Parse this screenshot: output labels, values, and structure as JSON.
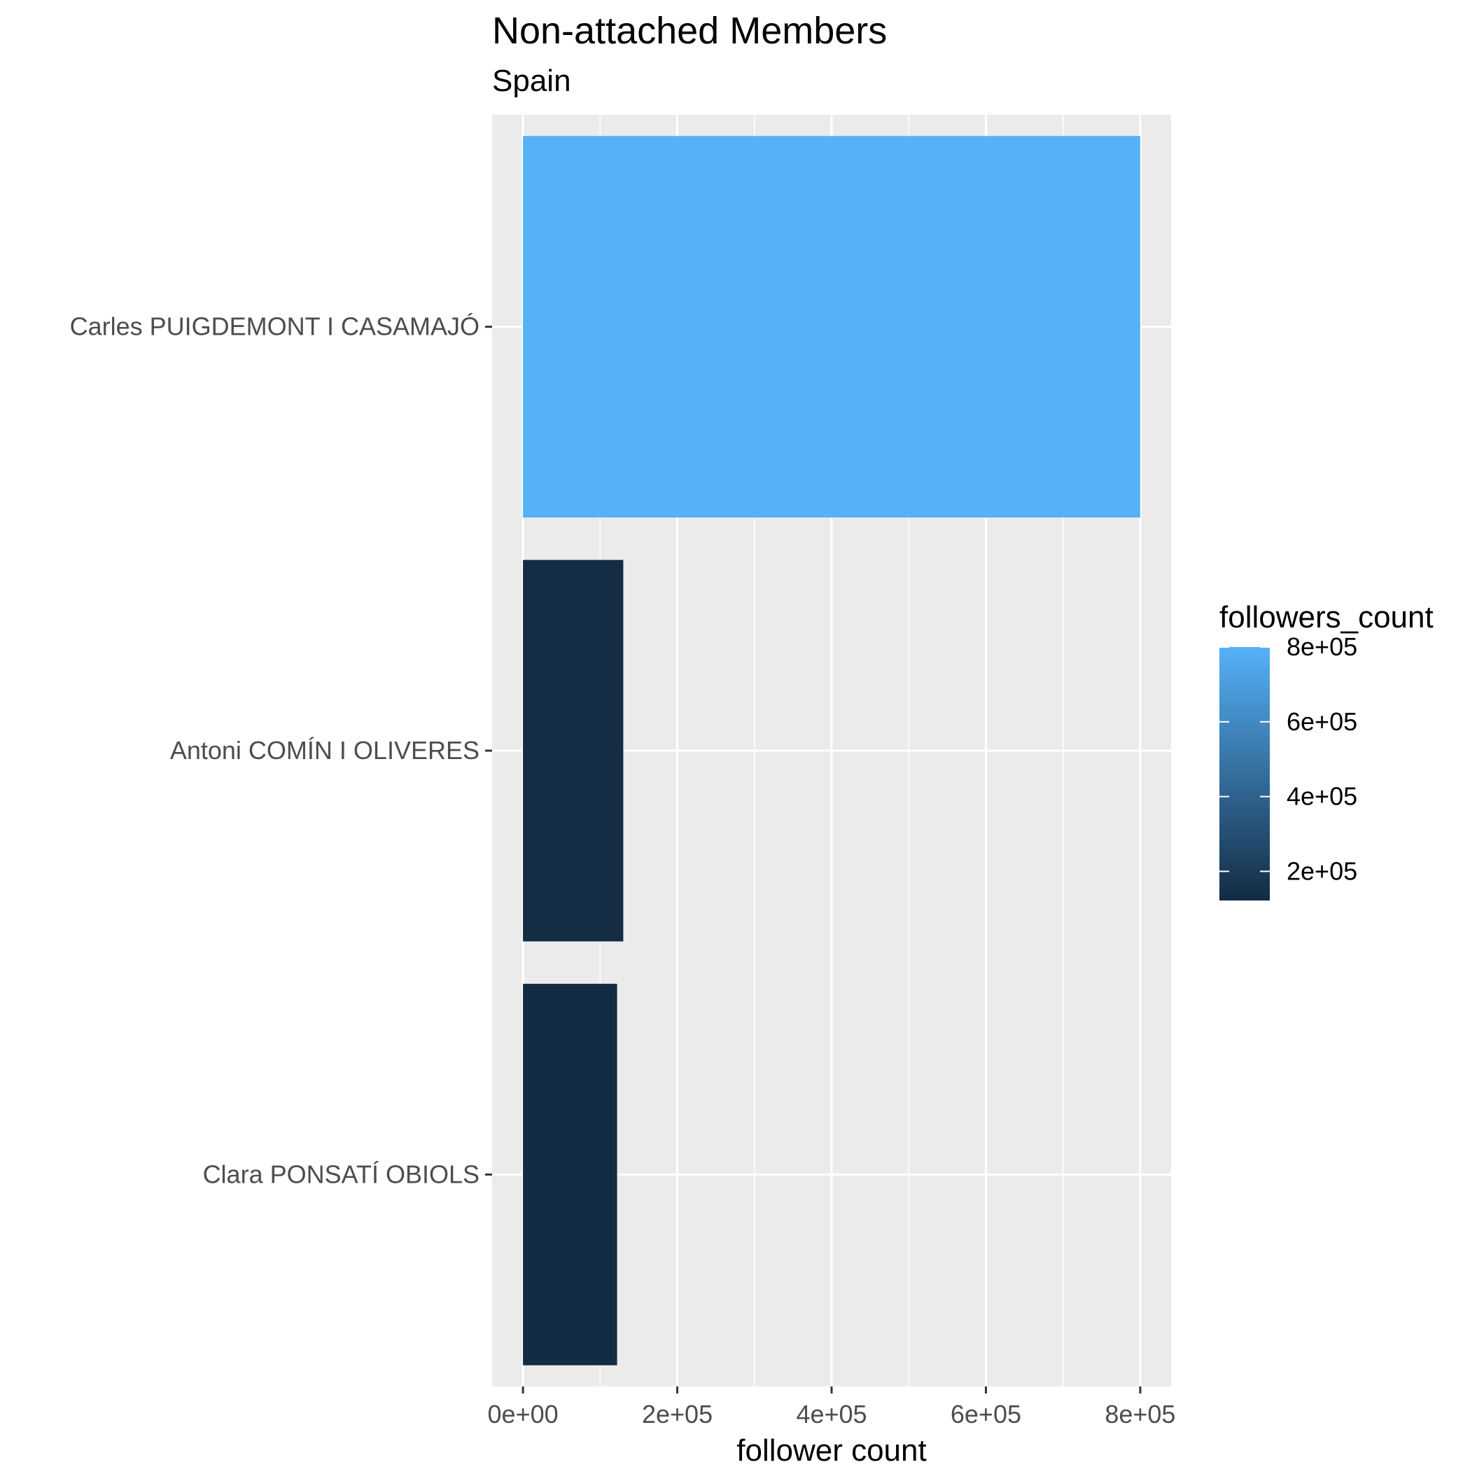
{
  "chart_data": {
    "type": "bar",
    "orientation": "horizontal",
    "title": "Non-attached Members",
    "subtitle": "Spain",
    "xlabel": "follower count",
    "ylabel": "",
    "categories": [
      "Carles PUIGDEMONT I CASAMAJÓ",
      "Antoni COMÍN I OLIVERES",
      "Clara PONSATÍ OBIOLS"
    ],
    "values": [
      800000,
      130000,
      122000
    ],
    "xlim": [
      -40000,
      840000
    ],
    "x_ticks": [
      0,
      200000,
      400000,
      600000,
      800000
    ],
    "x_tick_labels": [
      "0e+00",
      "2e+05",
      "4e+05",
      "6e+05",
      "8e+05"
    ],
    "grid": true,
    "legend": {
      "title": "followers_count",
      "position": "right",
      "type": "colorbar",
      "range": [
        122000,
        800000
      ],
      "ticks": [
        200000,
        400000,
        600000,
        800000
      ],
      "tick_labels": [
        "2e+05",
        "4e+05",
        "6e+05",
        "8e+05"
      ],
      "color_low": "#132B43",
      "color_high": "#56B1F7"
    },
    "panel_background": "#ebebeb",
    "grid_color": "#ffffff"
  }
}
